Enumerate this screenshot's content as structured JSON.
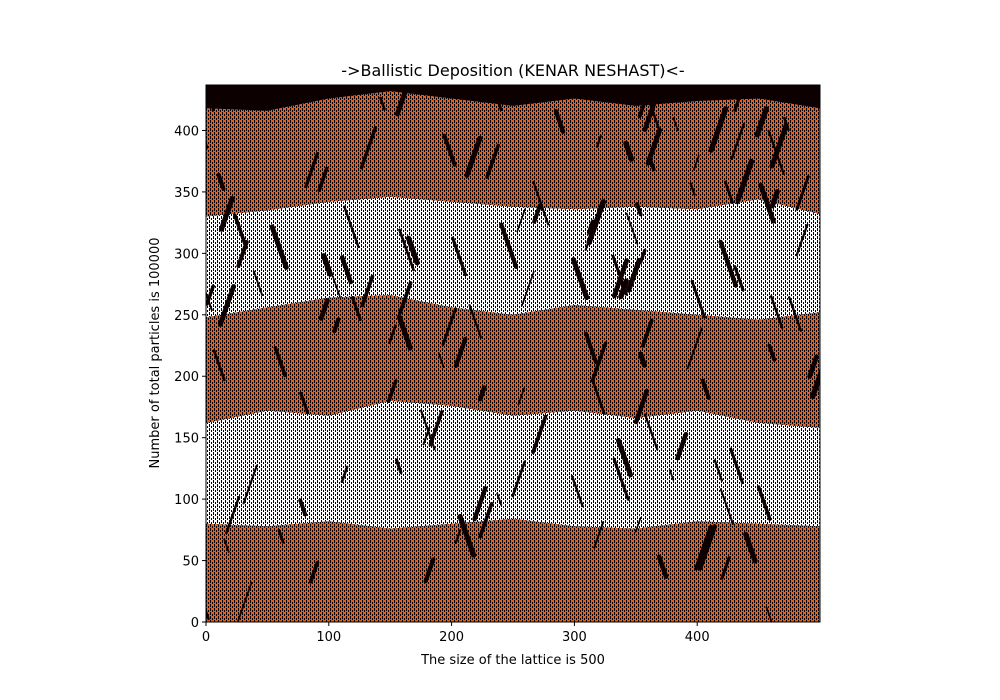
{
  "chart_data": {
    "type": "heatmap",
    "title": "->Ballistic Deposition (KENAR NESHAST)<-",
    "xlabel": "The size of the lattice is 500",
    "ylabel": "Number of total particles is 100000",
    "xlim": [
      0,
      500
    ],
    "ylim": [
      0,
      437
    ],
    "xticks": [
      0,
      100,
      200,
      300,
      400
    ],
    "yticks": [
      0,
      50,
      100,
      150,
      200,
      250,
      300,
      350,
      400
    ],
    "grid": false,
    "legend": "none",
    "colors": {
      "background": "#0d0000",
      "band_orange": "#f05a14",
      "band_white": "#ffffff"
    },
    "bands": [
      {
        "color": "orange",
        "lower": [
          0,
          0,
          0,
          0,
          0,
          0,
          0,
          0,
          0,
          0,
          0
        ],
        "upper": [
          80,
          78,
          82,
          76,
          80,
          84,
          78,
          76,
          82,
          80,
          78
        ]
      },
      {
        "color": "white",
        "lower": [
          80,
          78,
          82,
          76,
          80,
          84,
          78,
          76,
          82,
          80,
          78
        ],
        "upper": [
          162,
          172,
          168,
          180,
          176,
          168,
          172,
          166,
          172,
          162,
          158
        ]
      },
      {
        "color": "orange",
        "lower": [
          162,
          172,
          168,
          180,
          176,
          168,
          172,
          166,
          172,
          162,
          158
        ],
        "upper": [
          248,
          256,
          264,
          266,
          256,
          250,
          258,
          254,
          250,
          246,
          252
        ]
      },
      {
        "color": "white",
        "lower": [
          248,
          256,
          264,
          266,
          256,
          250,
          258,
          254,
          250,
          246,
          252
        ],
        "upper": [
          330,
          335,
          342,
          346,
          342,
          338,
          336,
          338,
          336,
          344,
          332
        ]
      },
      {
        "color": "orange",
        "lower": [
          330,
          335,
          342,
          346,
          342,
          338,
          336,
          338,
          336,
          344,
          332
        ],
        "upper": [
          418,
          416,
          426,
          432,
          426,
          420,
          426,
          420,
          424,
          426,
          418
        ]
      }
    ],
    "band_x": [
      0,
      50,
      100,
      150,
      200,
      250,
      300,
      350,
      400,
      450,
      500
    ]
  }
}
